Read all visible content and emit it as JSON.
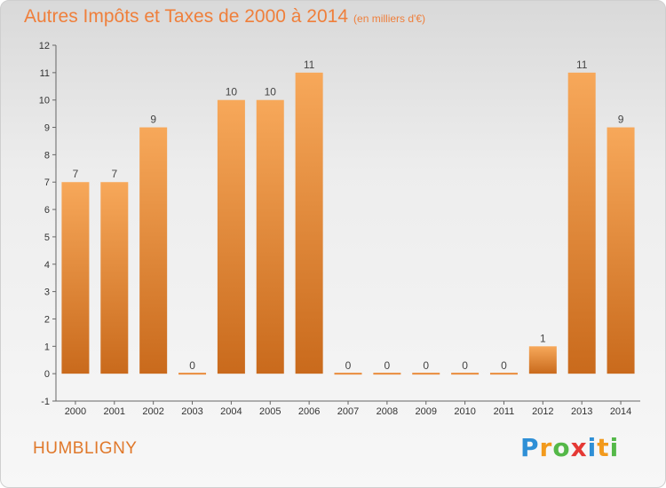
{
  "title": "Autres Impôts et Taxes de 2000 à 2014",
  "title_unit": "(en milliers d'€)",
  "commune": "HUMBLIGNY",
  "logo": {
    "text": "Proxiti",
    "letters": [
      {
        "ch": "P",
        "color": "#2e8fd6"
      },
      {
        "ch": "r",
        "color": "#f29a1d"
      },
      {
        "ch": "o",
        "color": "#54b848"
      },
      {
        "ch": "x",
        "color": "#e53935"
      },
      {
        "ch": "i",
        "color": "#2e8fd6"
      },
      {
        "ch": "t",
        "color": "#f29a1d"
      },
      {
        "ch": "i",
        "color": "#54b848"
      }
    ]
  },
  "chart_data": {
    "type": "bar",
    "categories": [
      "2000",
      "2001",
      "2002",
      "2003",
      "2004",
      "2005",
      "2006",
      "2007",
      "2008",
      "2009",
      "2010",
      "2011",
      "2012",
      "2013",
      "2014"
    ],
    "values": [
      7,
      7,
      9,
      0,
      10,
      10,
      11,
      0,
      0,
      0,
      0,
      0,
      1,
      11,
      9
    ],
    "ylim": [
      -1,
      12
    ],
    "yticks": [
      -1,
      0,
      1,
      2,
      3,
      4,
      5,
      6,
      7,
      8,
      9,
      10,
      11,
      12
    ],
    "xlabel": "",
    "ylabel": "",
    "grid": false,
    "legend": "none",
    "bar_color_top": "#f7a85a",
    "bar_color_bottom": "#c96a1c",
    "zero_bar_color": "#e98b3a"
  }
}
